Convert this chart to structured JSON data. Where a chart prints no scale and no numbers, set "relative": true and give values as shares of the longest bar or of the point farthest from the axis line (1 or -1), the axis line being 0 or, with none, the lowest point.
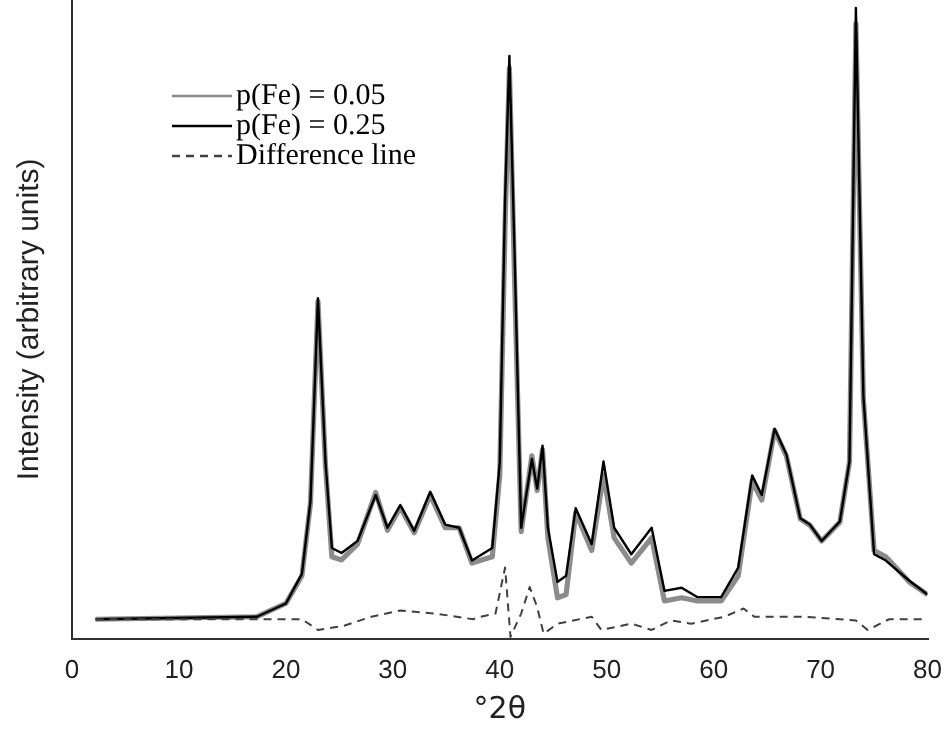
{
  "chart_data": {
    "type": "line",
    "relative": true,
    "xlabel": "°2θ",
    "ylabel": "Intensity (arbitrary units)",
    "xlim": [
      0,
      80
    ],
    "xticks": [
      0,
      10,
      20,
      30,
      40,
      50,
      60,
      70,
      80
    ],
    "legend": "top left",
    "grid": false,
    "marker": "none",
    "series": [
      {
        "name": "p(Fe) = 0.05",
        "color": "#8c8c8c",
        "line_style": "solid",
        "x": [
          2.2,
          17.3,
          20,
          21.5,
          22.3,
          23,
          23.7,
          24.3,
          25.2,
          26.7,
          28.4,
          29.5,
          30.7,
          32,
          33.5,
          34.9,
          36.2,
          37.4,
          39.3,
          40,
          40.5,
          40.9,
          41.4,
          42,
          43,
          43.5,
          44,
          44.5,
          45.4,
          46.2,
          47.1,
          48.6,
          49.7,
          50.7,
          52.3,
          54.2,
          55.4,
          57,
          58.5,
          60.7,
          62.3,
          63.6,
          64.5,
          65.7,
          66.8,
          68.1,
          69,
          70.1,
          71.8,
          72.7,
          73.3,
          74,
          75,
          76.1,
          78.3,
          80
        ],
        "values": [
          0.031,
          0.035,
          0.056,
          0.1,
          0.215,
          0.535,
          0.275,
          0.13,
          0.125,
          0.15,
          0.232,
          0.172,
          0.208,
          0.168,
          0.228,
          0.176,
          0.176,
          0.12,
          0.13,
          0.26,
          0.66,
          0.905,
          0.56,
          0.17,
          0.29,
          0.235,
          0.3,
          0.16,
          0.065,
          0.07,
          0.2,
          0.14,
          0.26,
          0.16,
          0.12,
          0.16,
          0.06,
          0.065,
          0.06,
          0.06,
          0.1,
          0.25,
          0.22,
          0.33,
          0.29,
          0.19,
          0.18,
          0.155,
          0.185,
          0.28,
          0.975,
          0.38,
          0.14,
          0.13,
          0.09,
          0.07
        ]
      },
      {
        "name": "p(Fe) = 0.25",
        "color": "#000000",
        "line_style": "solid",
        "x": [
          2.2,
          17.3,
          20,
          21.5,
          22.3,
          23,
          23.7,
          24.3,
          25.2,
          26.7,
          28.4,
          29.5,
          30.7,
          32,
          33.5,
          34.9,
          36.2,
          37.4,
          39.3,
          40,
          40.5,
          40.9,
          41.4,
          42,
          43,
          43.5,
          44,
          44.5,
          45.4,
          46.2,
          47.1,
          48.6,
          49.7,
          50.7,
          52.3,
          54.2,
          55.4,
          57,
          58.5,
          60.7,
          62.3,
          63.6,
          64.5,
          65.7,
          66.8,
          68.1,
          69,
          70.1,
          71.8,
          72.7,
          73.3,
          74,
          75,
          76.1,
          78.3,
          80
        ],
        "values": [
          0.031,
          0.035,
          0.056,
          0.103,
          0.218,
          0.54,
          0.281,
          0.144,
          0.136,
          0.155,
          0.228,
          0.176,
          0.212,
          0.171,
          0.233,
          0.181,
          0.176,
          0.124,
          0.144,
          0.28,
          0.7,
          0.924,
          0.6,
          0.176,
          0.285,
          0.238,
          0.306,
          0.176,
          0.09,
          0.1,
          0.207,
          0.15,
          0.281,
          0.176,
          0.134,
          0.176,
          0.076,
          0.081,
          0.066,
          0.066,
          0.113,
          0.259,
          0.228,
          0.333,
          0.292,
          0.191,
          0.181,
          0.155,
          0.186,
          0.281,
          1,
          0.385,
          0.134,
          0.124,
          0.092,
          0.07
        ]
      },
      {
        "name": "Difference line",
        "color": "#404040",
        "line_style": "dashed",
        "x": [
          2.2,
          17.3,
          21.5,
          23,
          25.5,
          28,
          30.7,
          34,
          37.5,
          38.2,
          39.6,
          40.5,
          41,
          42,
          42.8,
          43.5,
          44.1,
          45.4,
          48.6,
          49.5,
          52.3,
          54.2,
          56,
          57.9,
          61,
          62.8,
          63.8,
          68.4,
          73.3,
          74.4,
          76.4,
          80
        ],
        "values": [
          0.031,
          0.031,
          0.031,
          0.014,
          0.021,
          0.035,
          0.045,
          0.04,
          0.031,
          0.035,
          0.04,
          0.113,
          0.003,
          0.04,
          0.082,
          0.05,
          0.008,
          0.024,
          0.035,
          0.014,
          0.024,
          0.014,
          0.029,
          0.024,
          0.035,
          0.048,
          0.035,
          0.035,
          0.029,
          0.014,
          0.031,
          0.031
        ]
      }
    ]
  }
}
